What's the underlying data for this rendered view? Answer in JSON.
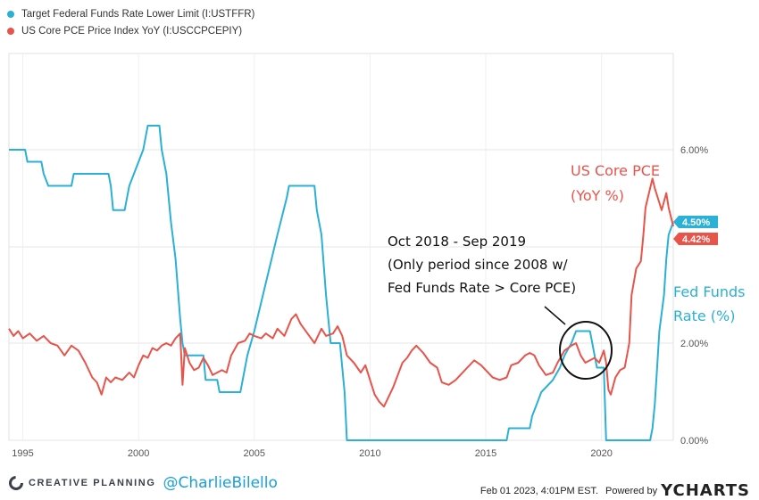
{
  "legend": [
    {
      "label": "Target Federal Funds Rate Lower Limit (I:USTFFR)",
      "color": "#2bb0d6"
    },
    {
      "label": "US Core PCE Price Index YoY (I:USCCPCEPIY)",
      "color": "#e8534a"
    }
  ],
  "annotations": {
    "pce_label_1": "US Core PCE",
    "pce_label_2": "(YoY %)",
    "ffr_label_1": "Fed Funds",
    "ffr_label_2": "Rate (%)",
    "note_1": "Oct 2018 - Sep 2019",
    "note_2": "(Only period since 2008 w/",
    "note_3": "Fed Funds Rate > Core PCE)"
  },
  "footer": {
    "brand": "CREATIVE PLANNING",
    "handle": "@CharlieBilello",
    "timestamp": "Feb 01 2023, 4:01PM EST.",
    "powered_by": "Powered by",
    "ycharts": "YCHARTS"
  },
  "chart_data": {
    "type": "line",
    "x_ticks": [
      "1995",
      "2000",
      "2005",
      "2010",
      "2015",
      "2020"
    ],
    "y_ticks": [
      "6.00%",
      "2.00%",
      "0.00%"
    ],
    "grid": true,
    "end_labels": [
      {
        "text": "4.50%",
        "color": "#2bb0d6"
      },
      {
        "text": "4.42%",
        "color": "#e8534a"
      }
    ],
    "series": [
      {
        "name": "Target Federal Funds Rate Lower Limit (I:USTFFR)",
        "color": "#2bb0d6",
        "points": [
          [
            1994.4,
            6.0
          ],
          [
            1995.1,
            6.0
          ],
          [
            1995.2,
            5.75
          ],
          [
            1995.8,
            5.75
          ],
          [
            1995.9,
            5.5
          ],
          [
            1996.1,
            5.25
          ],
          [
            1997.1,
            5.25
          ],
          [
            1997.2,
            5.5
          ],
          [
            1998.7,
            5.5
          ],
          [
            1998.8,
            5.25
          ],
          [
            1998.9,
            4.75
          ],
          [
            1999.4,
            4.75
          ],
          [
            1999.5,
            5.0
          ],
          [
            1999.6,
            5.25
          ],
          [
            1999.8,
            5.5
          ],
          [
            2000.0,
            5.75
          ],
          [
            2000.2,
            6.0
          ],
          [
            2000.4,
            6.5
          ],
          [
            2000.9,
            6.5
          ],
          [
            2001.0,
            6.0
          ],
          [
            2001.2,
            5.5
          ],
          [
            2001.4,
            4.5
          ],
          [
            2001.6,
            3.75
          ],
          [
            2001.8,
            2.5
          ],
          [
            2001.9,
            2.0
          ],
          [
            2002.0,
            1.75
          ],
          [
            2002.8,
            1.75
          ],
          [
            2002.9,
            1.25
          ],
          [
            2003.4,
            1.25
          ],
          [
            2003.5,
            1.0
          ],
          [
            2004.4,
            1.0
          ],
          [
            2004.5,
            1.25
          ],
          [
            2004.7,
            1.75
          ],
          [
            2005.0,
            2.25
          ],
          [
            2005.5,
            3.25
          ],
          [
            2006.0,
            4.25
          ],
          [
            2006.4,
            5.0
          ],
          [
            2006.5,
            5.25
          ],
          [
            2007.6,
            5.25
          ],
          [
            2007.7,
            4.75
          ],
          [
            2007.9,
            4.25
          ],
          [
            2008.1,
            3.0
          ],
          [
            2008.3,
            2.0
          ],
          [
            2008.7,
            2.0
          ],
          [
            2008.8,
            1.5
          ],
          [
            2008.9,
            1.0
          ],
          [
            2009.0,
            0.0
          ],
          [
            2015.9,
            0.0
          ],
          [
            2016.0,
            0.25
          ],
          [
            2016.9,
            0.25
          ],
          [
            2017.0,
            0.5
          ],
          [
            2017.2,
            0.75
          ],
          [
            2017.4,
            1.0
          ],
          [
            2017.9,
            1.25
          ],
          [
            2018.2,
            1.5
          ],
          [
            2018.4,
            1.75
          ],
          [
            2018.7,
            2.0
          ],
          [
            2018.9,
            2.25
          ],
          [
            2019.5,
            2.25
          ],
          [
            2019.6,
            2.0
          ],
          [
            2019.7,
            1.75
          ],
          [
            2019.8,
            1.5
          ],
          [
            2020.1,
            1.5
          ],
          [
            2020.2,
            0.0
          ],
          [
            2022.1,
            0.0
          ],
          [
            2022.2,
            0.25
          ],
          [
            2022.3,
            0.75
          ],
          [
            2022.4,
            1.5
          ],
          [
            2022.5,
            2.25
          ],
          [
            2022.7,
            3.0
          ],
          [
            2022.8,
            3.75
          ],
          [
            2022.9,
            4.25
          ],
          [
            2023.1,
            4.5
          ]
        ]
      },
      {
        "name": "US Core PCE Price Index YoY (I:USCCPCEPIY)",
        "color": "#e8534a",
        "points": [
          [
            1994.4,
            2.3
          ],
          [
            1994.6,
            2.15
          ],
          [
            1994.8,
            2.25
          ],
          [
            1995.0,
            2.1
          ],
          [
            1995.3,
            2.2
          ],
          [
            1995.6,
            2.05
          ],
          [
            1995.9,
            2.15
          ],
          [
            1996.2,
            2.0
          ],
          [
            1996.5,
            1.95
          ],
          [
            1996.8,
            1.75
          ],
          [
            1997.1,
            1.95
          ],
          [
            1997.4,
            1.85
          ],
          [
            1997.7,
            1.6
          ],
          [
            1998.0,
            1.3
          ],
          [
            1998.2,
            1.2
          ],
          [
            1998.4,
            0.95
          ],
          [
            1998.6,
            1.3
          ],
          [
            1998.8,
            1.2
          ],
          [
            1999.0,
            1.3
          ],
          [
            1999.3,
            1.25
          ],
          [
            1999.6,
            1.4
          ],
          [
            1999.8,
            1.3
          ],
          [
            2000.0,
            1.55
          ],
          [
            2000.2,
            1.75
          ],
          [
            2000.4,
            1.7
          ],
          [
            2000.6,
            1.9
          ],
          [
            2000.8,
            1.85
          ],
          [
            2001.0,
            1.95
          ],
          [
            2001.2,
            2.0
          ],
          [
            2001.4,
            1.95
          ],
          [
            2001.6,
            2.1
          ],
          [
            2001.8,
            2.2
          ],
          [
            2001.9,
            1.15
          ],
          [
            2002.0,
            1.9
          ],
          [
            2002.2,
            1.6
          ],
          [
            2002.4,
            1.45
          ],
          [
            2002.6,
            1.5
          ],
          [
            2002.8,
            1.7
          ],
          [
            2003.0,
            1.55
          ],
          [
            2003.2,
            1.35
          ],
          [
            2003.4,
            1.4
          ],
          [
            2003.6,
            1.45
          ],
          [
            2003.8,
            1.4
          ],
          [
            2004.0,
            1.75
          ],
          [
            2004.3,
            2.0
          ],
          [
            2004.6,
            2.05
          ],
          [
            2004.8,
            2.2
          ],
          [
            2005.0,
            2.15
          ],
          [
            2005.3,
            2.1
          ],
          [
            2005.5,
            2.2
          ],
          [
            2005.8,
            2.1
          ],
          [
            2006.0,
            2.3
          ],
          [
            2006.3,
            2.15
          ],
          [
            2006.6,
            2.5
          ],
          [
            2006.8,
            2.6
          ],
          [
            2007.0,
            2.4
          ],
          [
            2007.3,
            2.2
          ],
          [
            2007.6,
            2.0
          ],
          [
            2007.9,
            2.3
          ],
          [
            2008.1,
            2.15
          ],
          [
            2008.4,
            2.2
          ],
          [
            2008.6,
            2.35
          ],
          [
            2008.8,
            2.15
          ],
          [
            2009.0,
            1.75
          ],
          [
            2009.3,
            1.6
          ],
          [
            2009.6,
            1.4
          ],
          [
            2009.8,
            1.55
          ],
          [
            2010.0,
            1.25
          ],
          [
            2010.2,
            0.95
          ],
          [
            2010.4,
            0.8
          ],
          [
            2010.6,
            0.7
          ],
          [
            2010.8,
            0.9
          ],
          [
            2011.0,
            1.1
          ],
          [
            2011.2,
            1.35
          ],
          [
            2011.4,
            1.6
          ],
          [
            2011.6,
            1.7
          ],
          [
            2011.8,
            1.85
          ],
          [
            2012.0,
            1.95
          ],
          [
            2012.3,
            1.8
          ],
          [
            2012.6,
            1.6
          ],
          [
            2012.9,
            1.5
          ],
          [
            2013.1,
            1.2
          ],
          [
            2013.4,
            1.15
          ],
          [
            2013.7,
            1.25
          ],
          [
            2013.9,
            1.35
          ],
          [
            2014.2,
            1.5
          ],
          [
            2014.5,
            1.65
          ],
          [
            2014.8,
            1.55
          ],
          [
            2015.0,
            1.45
          ],
          [
            2015.3,
            1.3
          ],
          [
            2015.6,
            1.25
          ],
          [
            2015.9,
            1.3
          ],
          [
            2016.1,
            1.55
          ],
          [
            2016.4,
            1.6
          ],
          [
            2016.7,
            1.75
          ],
          [
            2016.9,
            1.8
          ],
          [
            2017.1,
            1.75
          ],
          [
            2017.3,
            1.55
          ],
          [
            2017.6,
            1.35
          ],
          [
            2017.9,
            1.4
          ],
          [
            2018.1,
            1.6
          ],
          [
            2018.4,
            1.85
          ],
          [
            2018.7,
            1.95
          ],
          [
            2018.9,
            2.0
          ],
          [
            2019.1,
            1.75
          ],
          [
            2019.3,
            1.6
          ],
          [
            2019.5,
            1.65
          ],
          [
            2019.7,
            1.7
          ],
          [
            2019.9,
            1.6
          ],
          [
            2020.1,
            1.85
          ],
          [
            2020.2,
            1.6
          ],
          [
            2020.3,
            1.05
          ],
          [
            2020.4,
            0.95
          ],
          [
            2020.6,
            1.3
          ],
          [
            2020.8,
            1.45
          ],
          [
            2021.0,
            1.5
          ],
          [
            2021.2,
            2.0
          ],
          [
            2021.3,
            3.0
          ],
          [
            2021.5,
            3.55
          ],
          [
            2021.7,
            3.7
          ],
          [
            2021.8,
            4.2
          ],
          [
            2021.9,
            4.8
          ],
          [
            2022.0,
            5.0
          ],
          [
            2022.2,
            5.4
          ],
          [
            2022.3,
            5.2
          ],
          [
            2022.5,
            4.9
          ],
          [
            2022.6,
            4.75
          ],
          [
            2022.8,
            5.1
          ],
          [
            2022.9,
            4.8
          ],
          [
            2023.1,
            4.42
          ]
        ]
      }
    ]
  }
}
